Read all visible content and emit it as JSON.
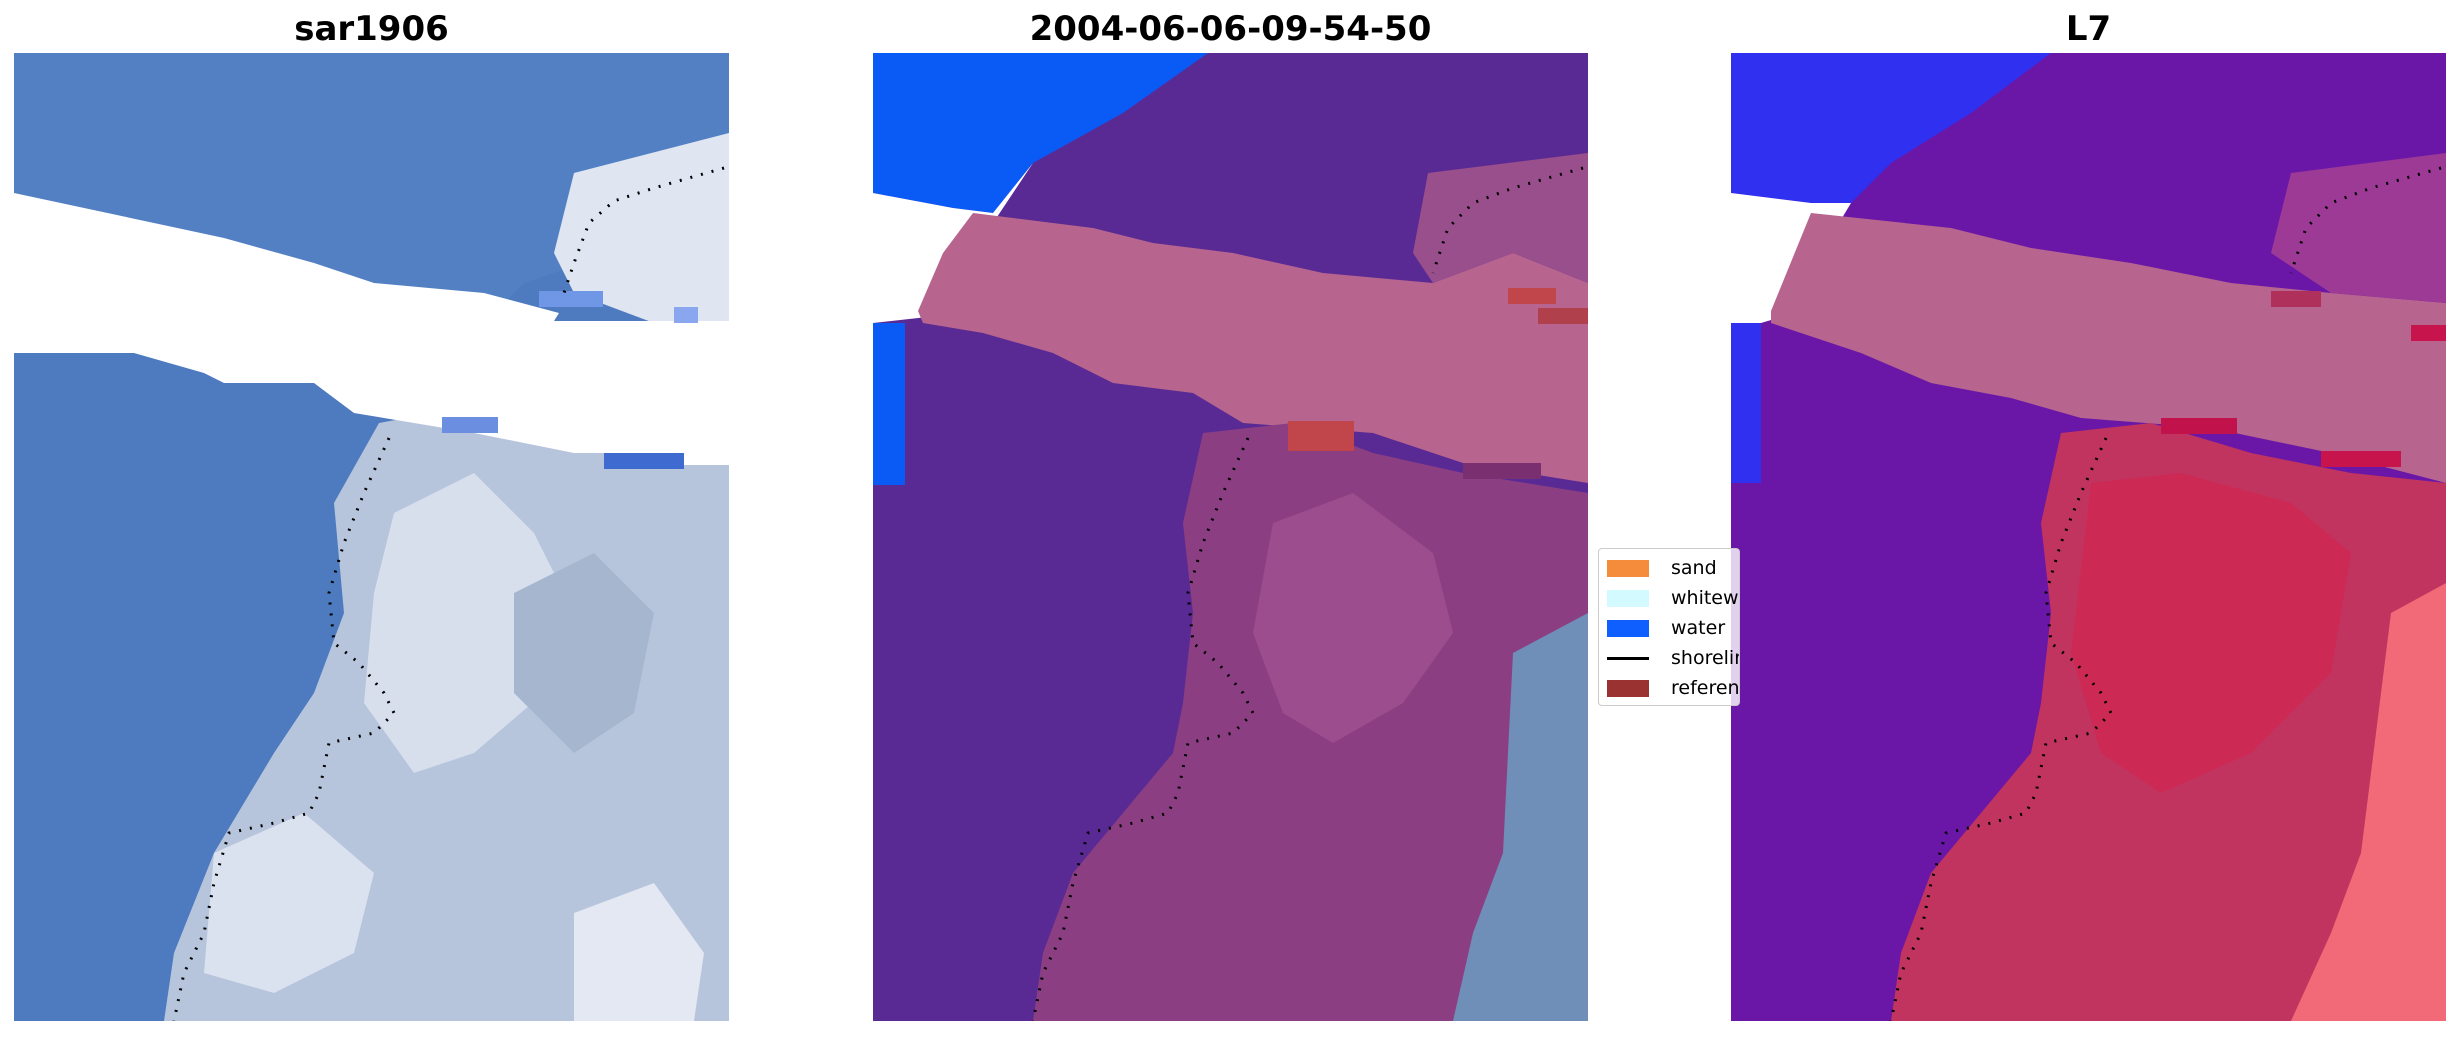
{
  "panels": [
    {
      "title": "sar1906"
    },
    {
      "title": "2004-06-06-09-54-50"
    },
    {
      "title": "L7"
    }
  ],
  "legend": {
    "items": [
      {
        "label": "sand",
        "color": "#f58c3c",
        "kind": "patch"
      },
      {
        "label": "whitewater",
        "color": "#d2faff",
        "kind": "patch"
      },
      {
        "label": "water",
        "color": "#0f5fff",
        "kind": "patch"
      },
      {
        "label": "shoreline",
        "color": "#000000",
        "kind": "line"
      },
      {
        "label": "reference shoreline",
        "color": "#9b3232",
        "kind": "patch"
      }
    ]
  },
  "colors": {
    "ocean_rgb": "#4e7bbf",
    "whitewater_rgb": "#c8d3e6",
    "water_class": "#5a2a94",
    "land_class": "#b7648f",
    "sea_class_left": "#0a5af5",
    "index_low": "#6a17a8",
    "index_high": "#d8245f",
    "index_max": "#ff6b73",
    "cloud_mask": "#ffffff",
    "shoreline": "#000000"
  }
}
